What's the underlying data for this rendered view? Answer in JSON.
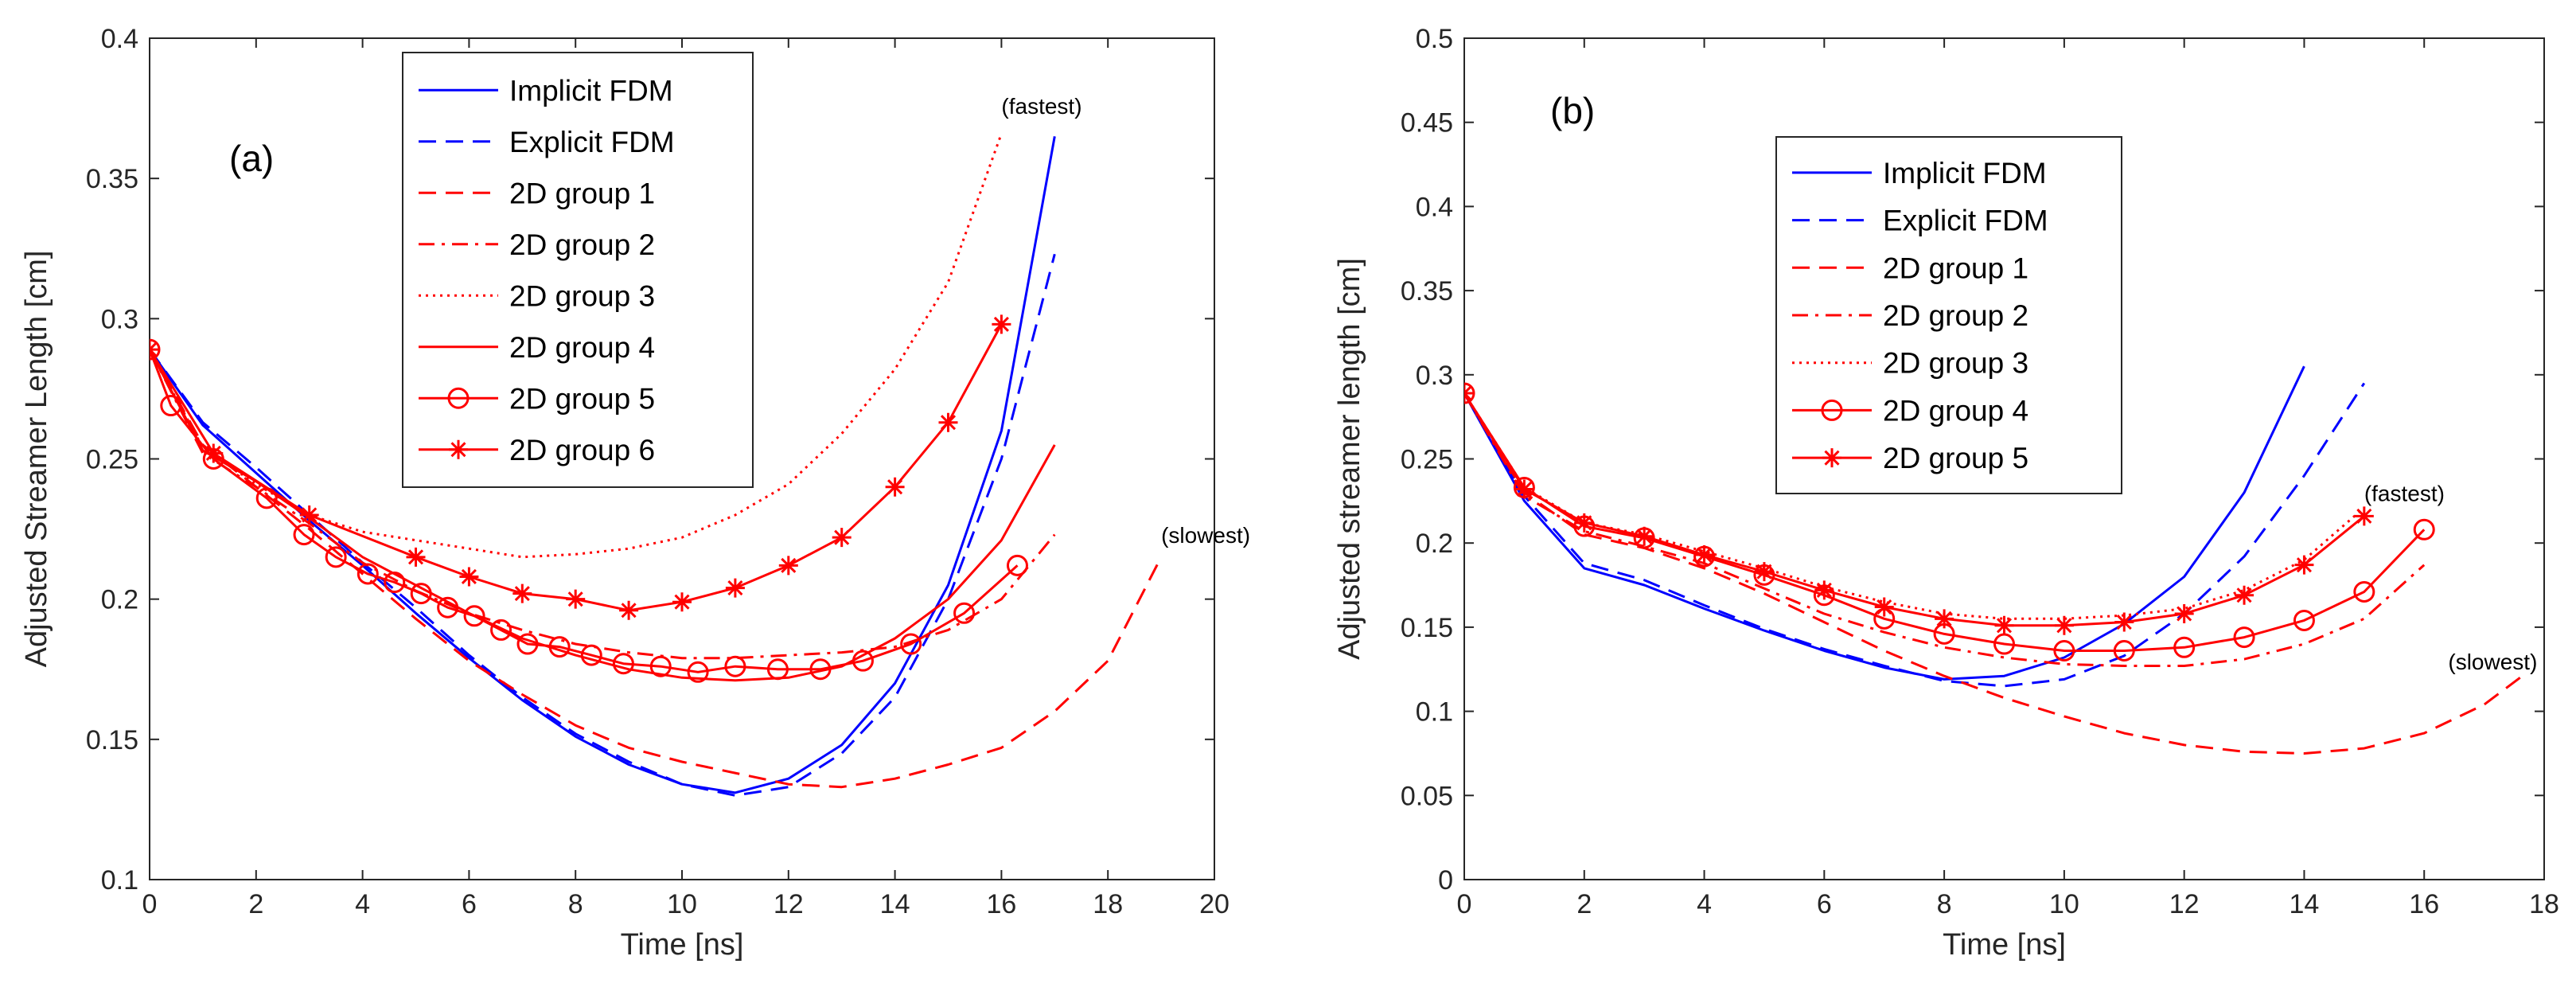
{
  "chart_data": [
    {
      "type": "line",
      "panel_label": "(a)",
      "xlabel": "Time [ns]",
      "ylabel": "Adjusted Streamer Length [cm]",
      "xlim": [
        0,
        20
      ],
      "ylim": [
        0.1,
        0.4
      ],
      "xticks": [
        0,
        2,
        4,
        6,
        8,
        10,
        12,
        14,
        16,
        18,
        20
      ],
      "yticks": [
        0.1,
        0.15,
        0.2,
        0.25,
        0.3,
        0.35,
        0.4
      ],
      "ytick_labels": [
        "0.1",
        "0.15",
        "0.2",
        "0.25",
        "0.3",
        "0.35",
        "0.4"
      ],
      "grid": false,
      "legend_position": "top-center",
      "series": [
        {
          "name": "Implicit FDM",
          "color": "#0000ff",
          "style": "solid",
          "marker": "none",
          "x": [
            0,
            1,
            2,
            3,
            4,
            5,
            6,
            7,
            8,
            9,
            10,
            11,
            12,
            13,
            14,
            15,
            16,
            17
          ],
          "y": [
            0.289,
            0.262,
            0.245,
            0.228,
            0.212,
            0.195,
            0.179,
            0.164,
            0.151,
            0.141,
            0.134,
            0.131,
            0.136,
            0.148,
            0.17,
            0.205,
            0.26,
            0.365
          ]
        },
        {
          "name": "Explicit FDM",
          "color": "#0000ff",
          "style": "dashed",
          "marker": "none",
          "x": [
            0,
            1,
            2,
            3,
            4,
            5,
            6,
            7,
            8,
            9,
            10,
            11,
            12,
            13,
            14,
            15,
            16,
            17
          ],
          "y": [
            0.289,
            0.263,
            0.247,
            0.23,
            0.213,
            0.197,
            0.18,
            0.165,
            0.152,
            0.142,
            0.134,
            0.13,
            0.133,
            0.145,
            0.165,
            0.2,
            0.25,
            0.323
          ]
        },
        {
          "name": "2D group 1",
          "color": "#ff0000",
          "style": "dashed",
          "marker": "none",
          "x": [
            0,
            1,
            2,
            3,
            4,
            5,
            6,
            7,
            8,
            9,
            10,
            11,
            12,
            13,
            14,
            15,
            16,
            17,
            18,
            19
          ],
          "y": [
            0.289,
            0.255,
            0.24,
            0.225,
            0.209,
            0.193,
            0.178,
            0.166,
            0.155,
            0.147,
            0.142,
            0.138,
            0.134,
            0.133,
            0.136,
            0.141,
            0.147,
            0.16,
            0.178,
            0.215
          ]
        },
        {
          "name": "2D group 2",
          "color": "#ff0000",
          "style": "dashdot",
          "marker": "none",
          "x": [
            0,
            1,
            2,
            3,
            4,
            5,
            6,
            7,
            8,
            9,
            10,
            11,
            12,
            13,
            14,
            15,
            16,
            17
          ],
          "y": [
            0.289,
            0.252,
            0.24,
            0.227,
            0.213,
            0.203,
            0.195,
            0.189,
            0.184,
            0.181,
            0.179,
            0.179,
            0.18,
            0.181,
            0.183,
            0.189,
            0.2,
            0.223
          ]
        },
        {
          "name": "2D group 3",
          "color": "#ff0000",
          "style": "dotted",
          "marker": "none",
          "x": [
            0,
            1,
            2,
            3,
            4,
            5,
            6,
            7,
            8,
            9,
            10,
            11,
            12,
            13,
            14,
            15,
            16
          ],
          "y": [
            0.289,
            0.254,
            0.241,
            0.23,
            0.224,
            0.221,
            0.218,
            0.215,
            0.216,
            0.218,
            0.222,
            0.23,
            0.241,
            0.259,
            0.282,
            0.313,
            0.366
          ]
        },
        {
          "name": "2D group 4",
          "color": "#ff0000",
          "style": "solid",
          "marker": "none",
          "x": [
            0,
            1,
            2,
            3,
            4,
            5,
            6,
            7,
            8,
            9,
            10,
            11,
            12,
            13,
            14,
            15,
            16,
            17
          ],
          "y": [
            0.289,
            0.253,
            0.242,
            0.229,
            0.215,
            0.205,
            0.195,
            0.186,
            0.18,
            0.175,
            0.172,
            0.171,
            0.172,
            0.176,
            0.186,
            0.2,
            0.221,
            0.255
          ]
        },
        {
          "name": "2D group 5",
          "color": "#ff0000",
          "style": "solid",
          "marker": "circle",
          "x": [
            0,
            0.4,
            1.2,
            2.2,
            2.9,
            3.5,
            4.1,
            4.6,
            5.1,
            5.6,
            6.1,
            6.6,
            7.1,
            7.7,
            8.3,
            8.9,
            9.6,
            10.3,
            11.0,
            11.8,
            12.6,
            13.4,
            14.3,
            15.3,
            16.3
          ],
          "y": [
            0.289,
            0.269,
            0.25,
            0.236,
            0.223,
            0.215,
            0.209,
            0.206,
            0.202,
            0.197,
            0.194,
            0.189,
            0.184,
            0.183,
            0.18,
            0.177,
            0.176,
            0.174,
            0.176,
            0.175,
            0.175,
            0.178,
            0.184,
            0.195,
            0.212
          ]
        },
        {
          "name": "2D group 6",
          "color": "#ff0000",
          "style": "solid",
          "marker": "star",
          "x": [
            0,
            1.2,
            3,
            5,
            6,
            7,
            8,
            9,
            10,
            11,
            12,
            13,
            14,
            15,
            16
          ],
          "y": [
            0.289,
            0.252,
            0.23,
            0.215,
            0.208,
            0.202,
            0.2,
            0.196,
            0.199,
            0.204,
            0.212,
            0.222,
            0.24,
            0.263,
            0.298
          ]
        }
      ],
      "annotations": [
        {
          "text": "(fastest)",
          "x": 16,
          "y": 0.373
        },
        {
          "text": "(slowest)",
          "x": 19,
          "y": 0.22
        }
      ]
    },
    {
      "type": "line",
      "panel_label": "(b)",
      "xlabel": "Time [ns]",
      "ylabel": "Adjusted streamer length [cm]",
      "xlim": [
        0,
        18
      ],
      "ylim": [
        0,
        0.5
      ],
      "xticks": [
        0,
        2,
        4,
        6,
        8,
        10,
        12,
        14,
        16,
        18
      ],
      "yticks": [
        0,
        0.05,
        0.1,
        0.15,
        0.2,
        0.25,
        0.3,
        0.35,
        0.4,
        0.45,
        0.5
      ],
      "ytick_labels": [
        "0",
        "0.05",
        "0.1",
        "0.15",
        "0.2",
        "0.25",
        "0.3",
        "0.35",
        "0.4",
        "0.45",
        "0.5"
      ],
      "grid": false,
      "legend_position": "top-center",
      "series": [
        {
          "name": "Implicit FDM",
          "color": "#0000ff",
          "style": "solid",
          "marker": "none",
          "x": [
            0,
            1,
            2,
            3,
            4,
            5,
            6,
            7,
            8,
            9,
            10,
            11,
            12,
            13,
            14
          ],
          "y": [
            0.289,
            0.225,
            0.185,
            0.175,
            0.161,
            0.148,
            0.136,
            0.126,
            0.119,
            0.121,
            0.132,
            0.152,
            0.18,
            0.23,
            0.305
          ]
        },
        {
          "name": "Explicit FDM",
          "color": "#0000ff",
          "style": "dashed",
          "marker": "none",
          "x": [
            0,
            1,
            2,
            3,
            4,
            5,
            6,
            7,
            8,
            9,
            10,
            11,
            12,
            13,
            14,
            15
          ],
          "y": [
            0.289,
            0.228,
            0.188,
            0.178,
            0.163,
            0.149,
            0.137,
            0.127,
            0.118,
            0.115,
            0.119,
            0.133,
            0.158,
            0.192,
            0.24,
            0.295
          ]
        },
        {
          "name": "2D group 1",
          "color": "#ff0000",
          "style": "dashed",
          "marker": "none",
          "x": [
            0,
            1,
            2,
            3,
            4,
            5,
            6,
            7,
            8,
            9,
            10,
            11,
            12,
            13,
            14,
            15,
            16,
            17,
            17.6
          ],
          "y": [
            0.289,
            0.23,
            0.205,
            0.197,
            0.185,
            0.17,
            0.153,
            0.136,
            0.121,
            0.108,
            0.097,
            0.087,
            0.08,
            0.076,
            0.075,
            0.078,
            0.087,
            0.104,
            0.12
          ]
        },
        {
          "name": "2D group 2",
          "color": "#ff0000",
          "style": "dashdot",
          "marker": "none",
          "x": [
            0,
            1,
            2,
            3,
            4,
            5,
            6,
            7,
            8,
            9,
            10,
            11,
            12,
            13,
            14,
            15,
            16
          ],
          "y": [
            0.289,
            0.228,
            0.207,
            0.198,
            0.188,
            0.173,
            0.158,
            0.147,
            0.138,
            0.132,
            0.128,
            0.127,
            0.127,
            0.131,
            0.14,
            0.155,
            0.187
          ]
        },
        {
          "name": "2D group 3",
          "color": "#ff0000",
          "style": "dotted",
          "marker": "none",
          "x": [
            0,
            1,
            2,
            3,
            4,
            5,
            6,
            7,
            8,
            9,
            10,
            11,
            12,
            13,
            14,
            15
          ],
          "y": [
            0.289,
            0.233,
            0.212,
            0.205,
            0.195,
            0.185,
            0.174,
            0.165,
            0.158,
            0.155,
            0.155,
            0.157,
            0.161,
            0.172,
            0.19,
            0.221
          ]
        },
        {
          "name": "2D group 4",
          "color": "#ff0000",
          "style": "solid",
          "marker": "circle",
          "x": [
            0,
            1,
            2,
            3,
            4,
            5,
            6,
            7,
            8,
            9,
            10,
            11,
            12,
            13,
            14,
            15,
            16
          ],
          "y": [
            0.289,
            0.233,
            0.21,
            0.203,
            0.192,
            0.181,
            0.169,
            0.155,
            0.146,
            0.14,
            0.136,
            0.136,
            0.138,
            0.144,
            0.154,
            0.171,
            0.208
          ]
        },
        {
          "name": "2D group 5",
          "color": "#ff0000",
          "style": "solid",
          "marker": "star",
          "x": [
            0,
            1,
            2,
            3,
            4,
            5,
            6,
            7,
            8,
            9,
            10,
            11,
            12,
            13,
            14,
            15
          ],
          "y": [
            0.289,
            0.232,
            0.212,
            0.204,
            0.193,
            0.183,
            0.172,
            0.162,
            0.155,
            0.151,
            0.151,
            0.153,
            0.158,
            0.169,
            0.187,
            0.216
          ]
        }
      ],
      "annotations": [
        {
          "text": "(fastest)",
          "x": 15,
          "y": 0.225
        },
        {
          "text": "(slowest)",
          "x": 16.4,
          "y": 0.125
        }
      ]
    }
  ]
}
